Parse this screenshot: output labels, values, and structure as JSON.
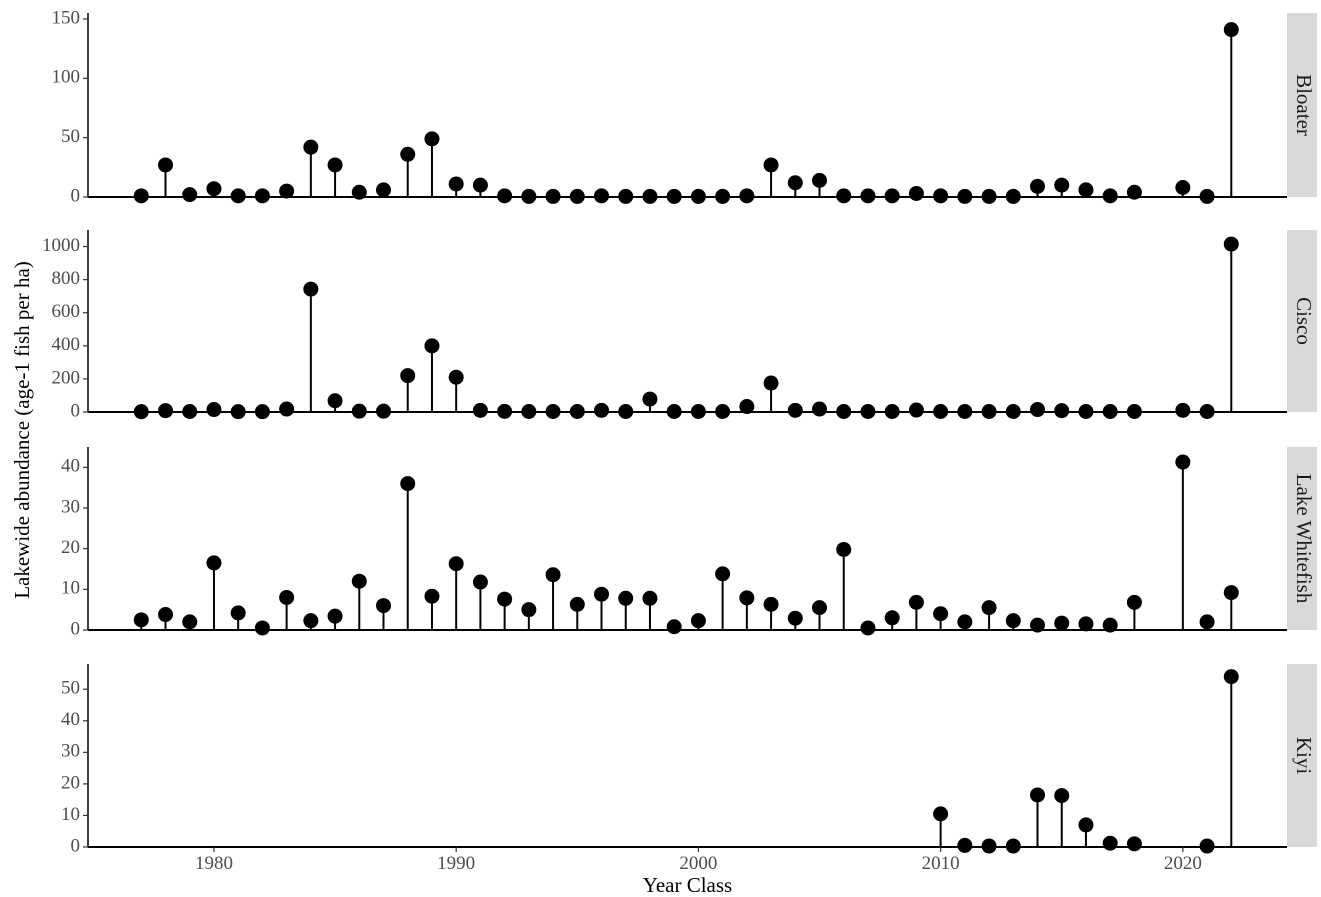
{
  "chart_data": {
    "type": "scatter",
    "style": "lollipop",
    "xlabel": "Year Class",
    "ylabel": "Lakewide abundance (age-1 fish per ha)",
    "x_ticks": [
      1980,
      1990,
      2000,
      2010,
      2020
    ],
    "xlim": [
      1974.8,
      2024.3
    ],
    "grid": false,
    "colors": {
      "point": "#000000",
      "strip": "#d9d9d9",
      "strip_text": "#1a1a1a",
      "tick_text": "#4d4d4d"
    },
    "panels": [
      {
        "name": "Bloater",
        "ylim": [
          0,
          155
        ],
        "y_ticks": [
          0,
          50,
          100,
          150
        ],
        "x": [
          1977,
          1978,
          1979,
          1980,
          1981,
          1982,
          1983,
          1984,
          1985,
          1986,
          1987,
          1988,
          1989,
          1990,
          1991,
          1992,
          1993,
          1994,
          1995,
          1996,
          1997,
          1998,
          1999,
          2000,
          2001,
          2002,
          2003,
          2004,
          2005,
          2006,
          2007,
          2008,
          2009,
          2010,
          2011,
          2012,
          2013,
          2014,
          2015,
          2016,
          2017,
          2018,
          2020,
          2021,
          2022
        ],
        "y": [
          1,
          27,
          2,
          7,
          1,
          1,
          5,
          42,
          27,
          4,
          6,
          36,
          49,
          11,
          10,
          1,
          0.5,
          0.5,
          0.5,
          1,
          0.5,
          0.5,
          0.5,
          0.5,
          0.5,
          1,
          27,
          12,
          14,
          1,
          1,
          1,
          3,
          1,
          0.5,
          0.5,
          0.5,
          9,
          10,
          6,
          1,
          4,
          8,
          0.5,
          141
        ]
      },
      {
        "name": "Cisco",
        "ylim": [
          0,
          1100
        ],
        "y_ticks": [
          0,
          200,
          400,
          600,
          800,
          1000
        ],
        "x": [
          1977,
          1978,
          1979,
          1980,
          1981,
          1982,
          1983,
          1984,
          1985,
          1986,
          1987,
          1988,
          1989,
          1990,
          1991,
          1992,
          1993,
          1994,
          1995,
          1996,
          1997,
          1998,
          1999,
          2000,
          2001,
          2002,
          2003,
          2004,
          2005,
          2006,
          2007,
          2008,
          2009,
          2010,
          2011,
          2012,
          2013,
          2014,
          2015,
          2016,
          2017,
          2018,
          2020,
          2021,
          2022
        ],
        "y": [
          2,
          8,
          3,
          15,
          2,
          2,
          18,
          743,
          68,
          5,
          5,
          220,
          400,
          210,
          10,
          4,
          3,
          3,
          3,
          10,
          3,
          78,
          3,
          3,
          3,
          33,
          175,
          10,
          18,
          3,
          3,
          3,
          12,
          3,
          3,
          3,
          3,
          15,
          8,
          3,
          3,
          3,
          10,
          3,
          1015
        ]
      },
      {
        "name": "Lake Whitefish",
        "ylim": [
          0,
          45
        ],
        "y_ticks": [
          0,
          10,
          20,
          30,
          40
        ],
        "x": [
          1977,
          1978,
          1979,
          1980,
          1981,
          1982,
          1983,
          1984,
          1985,
          1986,
          1987,
          1988,
          1989,
          1990,
          1991,
          1992,
          1993,
          1994,
          1995,
          1996,
          1997,
          1998,
          1999,
          2000,
          2001,
          2002,
          2003,
          2004,
          2005,
          2006,
          2007,
          2008,
          2009,
          2010,
          2011,
          2012,
          2013,
          2014,
          2015,
          2016,
          2017,
          2018,
          2020,
          2021,
          2022
        ],
        "y": [
          2.5,
          3.8,
          2,
          16.5,
          4.2,
          0.5,
          8,
          2.3,
          3.4,
          12,
          6,
          36,
          8.3,
          16.3,
          11.8,
          7.6,
          5,
          13.6,
          6.3,
          8.8,
          7.8,
          7.8,
          0.8,
          2.3,
          13.8,
          7.9,
          6.3,
          2.9,
          5.5,
          19.8,
          0.5,
          3,
          6.8,
          4,
          2,
          5.5,
          2.3,
          1.2,
          1.7,
          1.5,
          1.2,
          6.8,
          41.3,
          2,
          9.2
        ]
      },
      {
        "name": "Kiyi",
        "ylim": [
          0,
          58
        ],
        "y_ticks": [
          0,
          10,
          20,
          30,
          40,
          50
        ],
        "x": [
          2010,
          2011,
          2012,
          2013,
          2014,
          2015,
          2016,
          2017,
          2018,
          2021,
          2022
        ],
        "y": [
          10.5,
          0.5,
          0.3,
          0.3,
          16.5,
          16.3,
          7,
          1.2,
          1,
          0.3,
          54
        ]
      }
    ]
  }
}
